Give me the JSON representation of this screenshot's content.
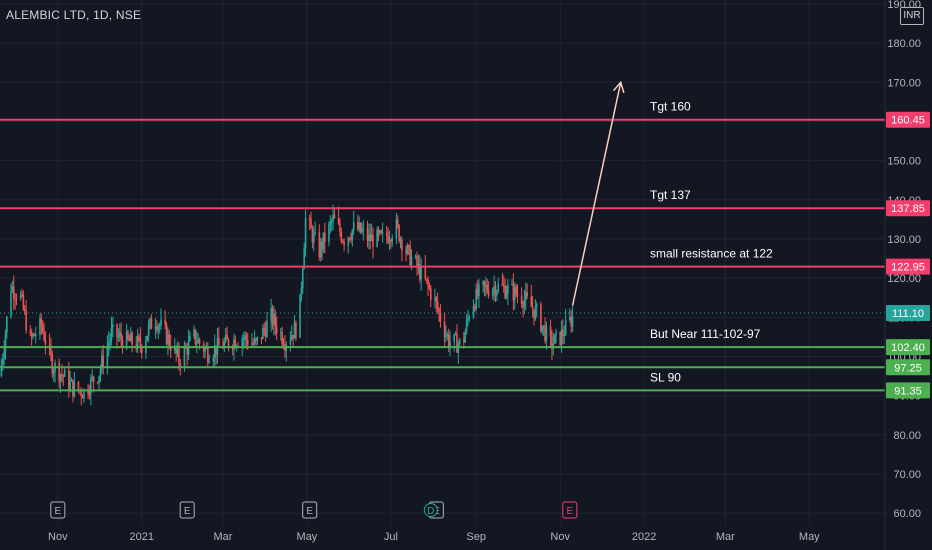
{
  "header": {
    "symbol": "ALEMBIC LTD, 1D, NSE",
    "currency": "INR"
  },
  "chart_data": {
    "type": "candlestick",
    "ylim": [
      57,
      191
    ],
    "y_ticks": [
      60,
      70,
      80,
      90,
      100,
      110,
      120,
      130,
      140,
      150,
      160,
      170,
      180,
      190
    ],
    "y_tick_labels": [
      "60.00",
      "70.00",
      "80.00",
      "90.00",
      "100.00",
      "110.00",
      "120.00",
      "130.00",
      "140.00",
      "150.00",
      "160.00",
      "170.00",
      "180.00",
      "190.00"
    ],
    "x_labels": [
      "Nov",
      "2021",
      "Mar",
      "May",
      "Jul",
      "Sep",
      "Nov",
      "2022",
      "Mar",
      "May"
    ],
    "x_label_dates": [
      "2020-11-01",
      "2021-01-01",
      "2021-03-01",
      "2021-05-01",
      "2021-07-01",
      "2021-09-01",
      "2021-11-01",
      "2022-01-01",
      "2022-03-01",
      "2022-05-01"
    ],
    "x_date_range": [
      "2020-09-20",
      "2022-06-25"
    ],
    "last_price": {
      "value": 111.1,
      "label": "111.10",
      "color": "#26a69a"
    },
    "levels": [
      {
        "value": 160.45,
        "label": "160.45",
        "color": "#f23d6d",
        "note": "Tgt 160"
      },
      {
        "value": 137.85,
        "label": "137.85",
        "color": "#f23d6d",
        "note": "Tgt 137"
      },
      {
        "value": 122.95,
        "label": "122.95",
        "color": "#f23d6d",
        "note": "small resistance at 122"
      },
      {
        "value": 102.4,
        "label": "102.40",
        "color": "#4caf50",
        "note": "But Near 111-102-97"
      },
      {
        "value": 97.25,
        "label": "97.25",
        "color": "#4caf50",
        "note": ""
      },
      {
        "value": 91.35,
        "label": "91.35",
        "color": "#4caf50",
        "note": "SL 90"
      }
    ],
    "price_path": [
      [
        "2020-09-20",
        95
      ],
      [
        "2020-09-28",
        118
      ],
      [
        "2020-10-05",
        115
      ],
      [
        "2020-10-12",
        104
      ],
      [
        "2020-10-20",
        108
      ],
      [
        "2020-10-28",
        98
      ],
      [
        "2020-11-05",
        95
      ],
      [
        "2020-11-12",
        92
      ],
      [
        "2020-11-20",
        91
      ],
      [
        "2020-12-01",
        96
      ],
      [
        "2020-12-10",
        106
      ],
      [
        "2020-12-20",
        104
      ],
      [
        "2021-01-01",
        103
      ],
      [
        "2021-01-10",
        110
      ],
      [
        "2021-01-18",
        106
      ],
      [
        "2021-01-28",
        99
      ],
      [
        "2021-02-08",
        105
      ],
      [
        "2021-02-18",
        101
      ],
      [
        "2021-03-01",
        103
      ],
      [
        "2021-03-15",
        105
      ],
      [
        "2021-03-25",
        103
      ],
      [
        "2021-04-05",
        110
      ],
      [
        "2021-04-15",
        104
      ],
      [
        "2021-04-25",
        108
      ],
      [
        "2021-04-30",
        135
      ],
      [
        "2021-05-10",
        127
      ],
      [
        "2021-05-20",
        135
      ],
      [
        "2021-05-28",
        130
      ],
      [
        "2021-06-05",
        133
      ],
      [
        "2021-06-15",
        130
      ],
      [
        "2021-06-25",
        130
      ],
      [
        "2021-07-05",
        133
      ],
      [
        "2021-07-12",
        127
      ],
      [
        "2021-07-20",
        123
      ],
      [
        "2021-08-01",
        115
      ],
      [
        "2021-08-12",
        104
      ],
      [
        "2021-08-22",
        103
      ],
      [
        "2021-08-28",
        113
      ],
      [
        "2021-09-05",
        117
      ],
      [
        "2021-09-15",
        118
      ],
      [
        "2021-09-25",
        117
      ],
      [
        "2021-10-05",
        115
      ],
      [
        "2021-10-15",
        111
      ],
      [
        "2021-10-25",
        103
      ],
      [
        "2021-11-01",
        105
      ],
      [
        "2021-11-10",
        110
      ]
    ],
    "earnings_markers": [
      {
        "date": "2020-11-01",
        "label": "E",
        "color": "#b2b5be"
      },
      {
        "date": "2021-02-03",
        "label": "E",
        "color": "#b2b5be"
      },
      {
        "date": "2021-05-03",
        "label": "E",
        "color": "#b2b5be"
      },
      {
        "date": "2021-08-03",
        "label": "E",
        "color": "#b2b5be"
      },
      {
        "date": "2021-11-08",
        "label": "E",
        "color": "#f23d6d"
      }
    ],
    "dividend_markers": [
      {
        "date": "2021-07-30",
        "label": "D",
        "color": "#26a69a"
      }
    ],
    "arrow": {
      "from": [
        "2021-11-10",
        113
      ],
      "to": [
        "2021-12-15",
        170
      ],
      "color": "#ffccbc"
    },
    "colors": {
      "up": "#26a69a",
      "down": "#ef5350",
      "grid": "#1f2433",
      "axis_text": "#b2b5be"
    }
  }
}
